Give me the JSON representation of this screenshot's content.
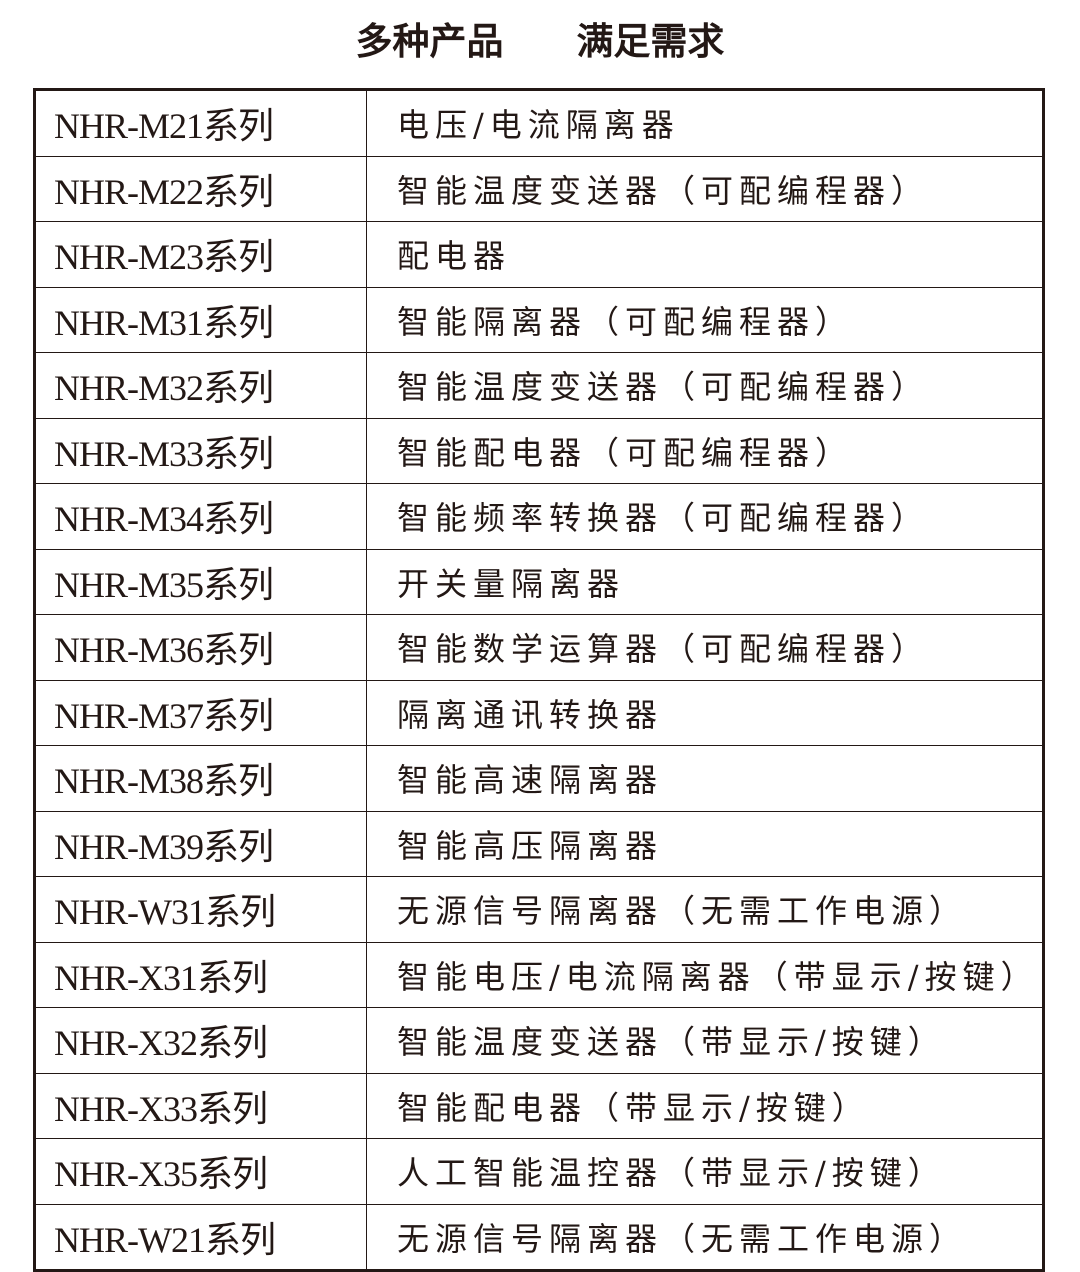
{
  "title": {
    "left": "多种产品",
    "right": "满足需求"
  },
  "rows": [
    {
      "code": "NHR-M21系列",
      "desc": "电压/电流隔离器"
    },
    {
      "code": "NHR-M22系列",
      "desc": "智能温度变送器（可配编程器）"
    },
    {
      "code": "NHR-M23系列",
      "desc": "配电器"
    },
    {
      "code": "NHR-M31系列",
      "desc": "智能隔离器（可配编程器）"
    },
    {
      "code": "NHR-M32系列",
      "desc": "智能温度变送器（可配编程器）"
    },
    {
      "code": "NHR-M33系列",
      "desc": "智能配电器（可配编程器）"
    },
    {
      "code": "NHR-M34系列",
      "desc": "智能频率转换器（可配编程器）"
    },
    {
      "code": "NHR-M35系列",
      "desc": "开关量隔离器"
    },
    {
      "code": "NHR-M36系列",
      "desc": "智能数学运算器（可配编程器）"
    },
    {
      "code": "NHR-M37系列",
      "desc": "隔离通讯转换器"
    },
    {
      "code": "NHR-M38系列",
      "desc": "智能高速隔离器"
    },
    {
      "code": "NHR-M39系列",
      "desc": "智能高压隔离器"
    },
    {
      "code": "NHR-W31系列",
      "desc": "无源信号隔离器（无需工作电源）"
    },
    {
      "code": "NHR-X31系列",
      "desc": "智能电压/电流隔离器（带显示/按键）"
    },
    {
      "code": "NHR-X32系列",
      "desc": "智能温度变送器（带显示/按键）"
    },
    {
      "code": "NHR-X33系列",
      "desc": "智能配电器（带显示/按键）"
    },
    {
      "code": "NHR-X35系列",
      "desc": "人工智能温控器（带显示/按键）"
    },
    {
      "code": "NHR-W21系列",
      "desc": "无源信号隔离器（无需工作电源）"
    }
  ]
}
